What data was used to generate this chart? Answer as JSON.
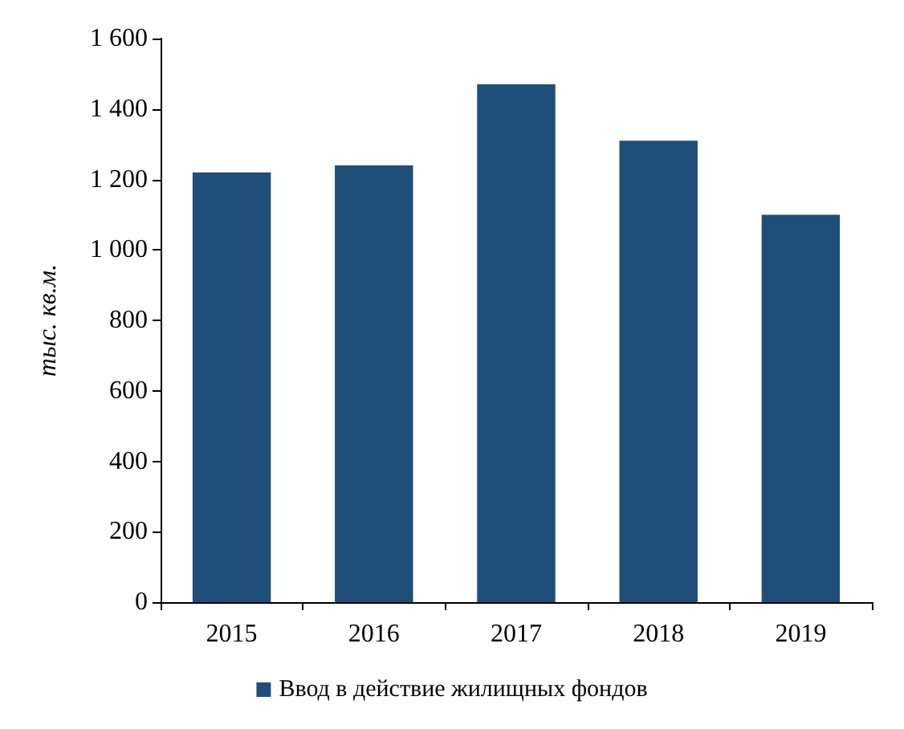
{
  "chart_data": {
    "type": "bar",
    "ylabel": "тыс. кв.м.",
    "categories": [
      "2015",
      "2016",
      "2017",
      "2018",
      "2019"
    ],
    "series": [
      {
        "name": "Ввод в действие жилищных фондов",
        "color": "#1f4e79",
        "values": [
          1220,
          1240,
          1470,
          1310,
          1100
        ]
      }
    ],
    "ylim": [
      0,
      1600
    ],
    "yticks": [
      0,
      200,
      400,
      600,
      800,
      {
        "value": 1000,
        "label": "1 000"
      },
      {
        "value": 1200,
        "label": "1 200"
      },
      {
        "value": 1400,
        "label": "1 400"
      },
      {
        "value": 1600,
        "label": "1 600"
      }
    ],
    "grid": false,
    "legend": "bottom"
  }
}
